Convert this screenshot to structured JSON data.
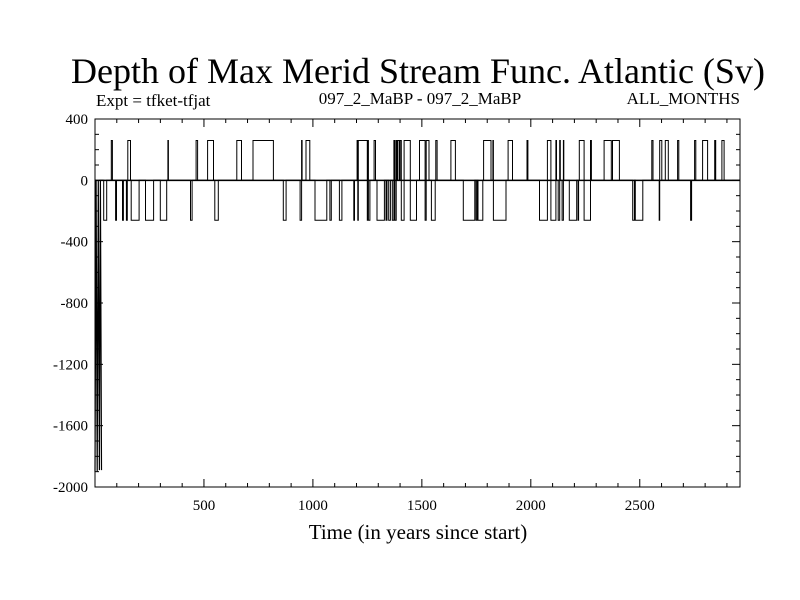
{
  "chart_data": {
    "type": "line",
    "title": "Depth of Max Merid Stream Func. Atlantic (Sv)",
    "subtitle_left": "Expt = tfket-tfjat",
    "subtitle_center": "097_2_MaBP - 097_2_MaBP",
    "subtitle_right": "ALL_MONTHS",
    "xlabel": "Time (in years since start)",
    "ylabel": "",
    "xlim": [
      0,
      2960
    ],
    "ylim": [
      -2000,
      400
    ],
    "xticks": [
      500,
      1000,
      1500,
      2000,
      2500
    ],
    "xtick_labels": [
      "500",
      "1000",
      "1500",
      "2000",
      "2500"
    ],
    "yticks": [
      400,
      0,
      -400,
      -800,
      -1200,
      -1600,
      -2000
    ],
    "ytick_labels": [
      "400",
      "0",
      "-400",
      "-800",
      "-1200",
      "-1600",
      "-2000"
    ],
    "grid": false,
    "series": [
      {
        "color": "#000000",
        "initial_spike": {
          "x": [
            0,
            5,
            10,
            15,
            20,
            25,
            30
          ],
          "y": [
            -1900,
            0,
            -1900,
            0,
            -1890,
            0,
            -1890
          ]
        },
        "switch_levels": [
          260,
          0,
          -260
        ],
        "switch_segments": [
          {
            "x_start": 20,
            "x_end": 2960,
            "y_values": [
              260,
              0,
              -260
            ]
          }
        ]
      }
    ]
  }
}
